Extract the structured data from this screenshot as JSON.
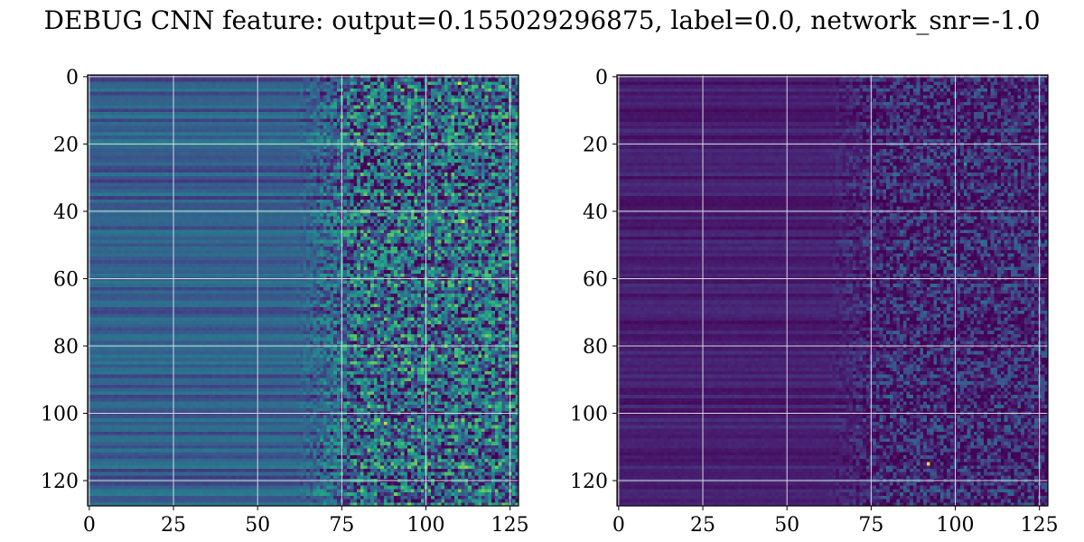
{
  "figure": {
    "title": "DEBUG CNN feature: output=0.155029296875, label=0.0, network_snr=-1.0"
  },
  "chart_data": [
    {
      "type": "heatmap",
      "rows": 128,
      "cols": 128,
      "colormap": "viridis",
      "intensity_note": "left feature map: brighter (teal/green/yellow) values, mostly in columns 75-127",
      "base_level": 0.3,
      "noise_level": 0.75,
      "grid": true,
      "xlim": [
        0,
        127
      ],
      "ylim": [
        127,
        0
      ],
      "xticks": [
        0,
        25,
        50,
        75,
        100,
        125
      ],
      "yticks": [
        0,
        20,
        40,
        60,
        80,
        100,
        120
      ],
      "hotspots": [
        {
          "row": 2,
          "col": 110,
          "value": 0.95
        },
        {
          "row": 43,
          "col": 111,
          "value": 0.95
        },
        {
          "row": 63,
          "col": 113,
          "value": 0.98
        },
        {
          "row": 68,
          "col": 85,
          "value": 0.8
        },
        {
          "row": 103,
          "col": 88,
          "value": 0.92
        }
      ]
    },
    {
      "type": "heatmap",
      "rows": 128,
      "cols": 128,
      "colormap": "viridis",
      "intensity_note": "right feature map: darker (purple) values, scattered teal in columns 75-127",
      "base_level": 0.1,
      "noise_level": 0.4,
      "grid": true,
      "xlim": [
        0,
        127
      ],
      "ylim": [
        127,
        0
      ],
      "xticks": [
        0,
        25,
        50,
        75,
        100,
        125
      ],
      "yticks": [
        0,
        20,
        40,
        60,
        80,
        100,
        120
      ],
      "hotspots": [
        {
          "row": 115,
          "col": 92,
          "value": 0.95
        },
        {
          "row": 26,
          "col": 103,
          "value": 0.55
        },
        {
          "row": 52,
          "col": 97,
          "value": 0.55
        }
      ]
    }
  ]
}
